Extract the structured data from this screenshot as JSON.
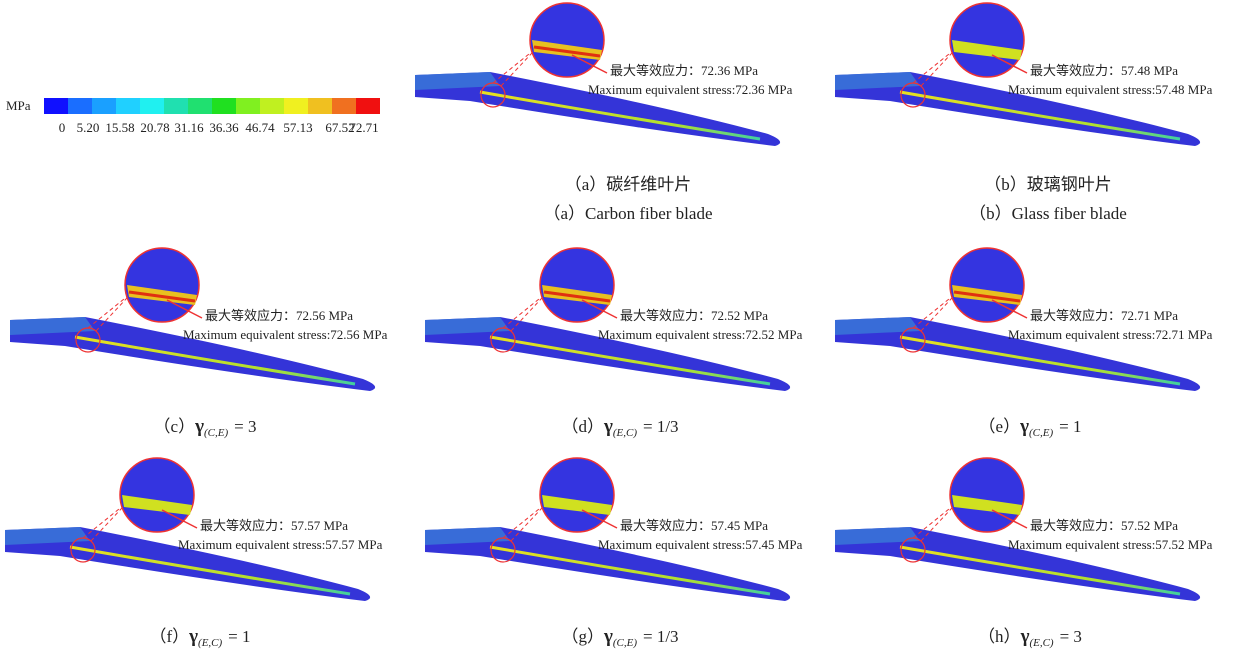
{
  "colorbar": {
    "unit": "MPa",
    "tick_labels": [
      "0",
      "5.20",
      "15.58",
      "20.78",
      "31.16",
      "36.36",
      "46.74",
      "57.13",
      "67.52",
      "72.71"
    ]
  },
  "panels": [
    {
      "stress_cn": "最大等效应力：72.36 MPa",
      "stress_en": "Maximum equivalent stress:72.36 MPa",
      "caption_cn": "（a）碳纤维叶片",
      "caption_en": "（a）Carbon fiber blade"
    },
    {
      "stress_cn": "最大等效应力：57.48 MPa",
      "stress_en": "Maximum equivalent stress:57.48 MPa",
      "caption_cn": "（b）玻璃钢叶片",
      "caption_en": "（b）Glass fiber blade"
    },
    {
      "stress_cn": "最大等效应力：72.56 MPa",
      "stress_en": "Maximum equivalent stress:72.56 MPa",
      "caption_label": "（c）",
      "caption_symbol": "γ",
      "caption_subscript": "(C,E)",
      "caption_value": "= 3"
    },
    {
      "stress_cn": "最大等效应力：72.52 MPa",
      "stress_en": "Maximum equivalent stress:72.52 MPa",
      "caption_label": "（d）",
      "caption_symbol": "γ",
      "caption_subscript": "(E,C)",
      "caption_value": "= 1/3"
    },
    {
      "stress_cn": "最大等效应力：72.71 MPa",
      "stress_en": "Maximum equivalent stress:72.71 MPa",
      "caption_label": "（e）",
      "caption_symbol": "γ",
      "caption_subscript": "(C,E)",
      "caption_value": "= 1"
    },
    {
      "stress_cn": "最大等效应力：57.57 MPa",
      "stress_en": "Maximum equivalent stress:57.57 MPa",
      "caption_label": "（f）",
      "caption_symbol": "γ",
      "caption_subscript": "(E,C)",
      "caption_value": "= 1"
    },
    {
      "stress_cn": "最大等效应力：57.45 MPa",
      "stress_en": "Maximum equivalent stress:57.45 MPa",
      "caption_label": "（g）",
      "caption_symbol": "γ",
      "caption_subscript": "(C,E)",
      "caption_value": "= 1/3"
    },
    {
      "stress_cn": "最大等效应力：57.52 MPa",
      "stress_en": "Maximum equivalent stress:57.52 MPa",
      "caption_label": "（h）",
      "caption_symbol": "γ",
      "caption_subscript": "(E,C)",
      "caption_value": "= 3"
    }
  ]
}
